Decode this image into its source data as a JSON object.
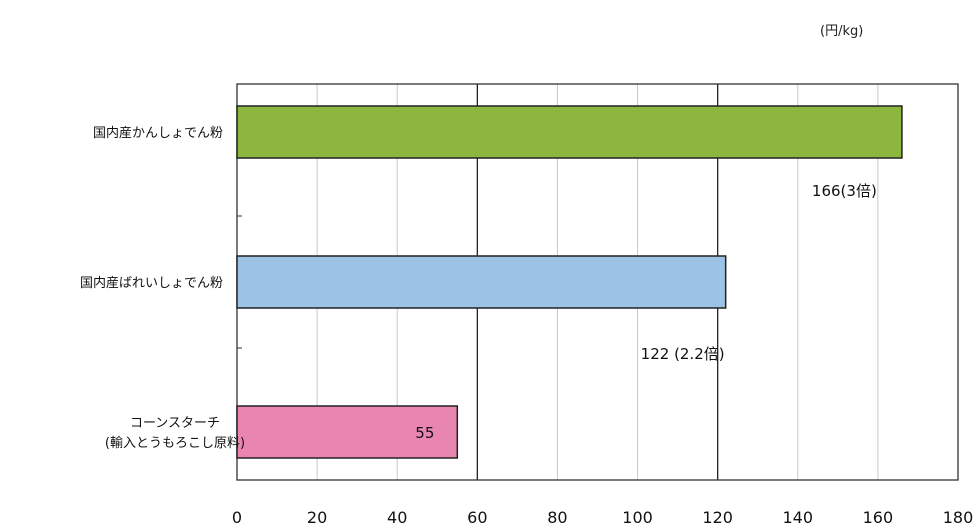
{
  "chart_data": {
    "type": "bar",
    "orientation": "horizontal",
    "unit_label": "(円/kg)",
    "categories": [
      [
        "国内産かんしょでん粉"
      ],
      [
        "国内産ばれいしょでん粉"
      ],
      [
        "コーンスターチ",
        "(輸入とうもろこし原料)"
      ]
    ],
    "values": [
      166,
      122,
      55
    ],
    "data_labels": [
      "166(3倍)",
      "122 (2.2倍)",
      "55"
    ],
    "colors": [
      "#8db63f",
      "#9cc2e6",
      "#e985b1"
    ],
    "xlim": [
      0,
      180
    ],
    "xticks": [
      "0",
      "20",
      "40",
      "60",
      "80",
      "100",
      "120",
      "140",
      "160",
      "180"
    ],
    "major_gridlines": [
      60,
      120
    ],
    "grid": true
  }
}
